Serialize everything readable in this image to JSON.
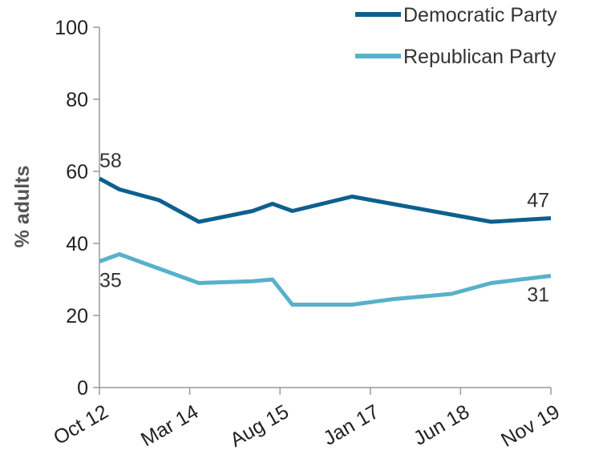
{
  "chart_data": {
    "type": "line",
    "xlabel": "",
    "ylabel": "% adults",
    "ylim": [
      0,
      100
    ],
    "yticks": [
      0,
      20,
      40,
      60,
      80,
      100
    ],
    "x_tick_labels": [
      "Oct 12",
      "Mar 14",
      "Aug 15",
      "Jan 17",
      "Jun 18",
      "Nov 19"
    ],
    "legend_position": "top-right",
    "grid": false,
    "series": [
      {
        "name": "Democratic Party",
        "color": "#0e5f8e",
        "x": [
          0,
          1,
          3,
          5,
          7.7,
          8.7,
          9.7,
          12.7,
          14.7,
          17.7,
          19.7,
          22.7
        ],
        "values": [
          58,
          55,
          52,
          46,
          49,
          51,
          49,
          53,
          51,
          48,
          46,
          47
        ],
        "labeled": [
          {
            "index": 0,
            "text": "58"
          },
          {
            "index": 11,
            "text": "47"
          }
        ]
      },
      {
        "name": "Republican Party",
        "color": "#58b1c9",
        "x": [
          0,
          1,
          3,
          5,
          7.7,
          8.7,
          9.7,
          12.7,
          14.7,
          17.7,
          19.7,
          22.7
        ],
        "values": [
          35,
          37,
          33,
          29,
          29.5,
          30,
          23,
          23,
          24.5,
          26,
          29,
          31
        ],
        "labeled": [
          {
            "index": 0,
            "text": "35"
          },
          {
            "index": 11,
            "text": "31"
          }
        ]
      }
    ]
  }
}
